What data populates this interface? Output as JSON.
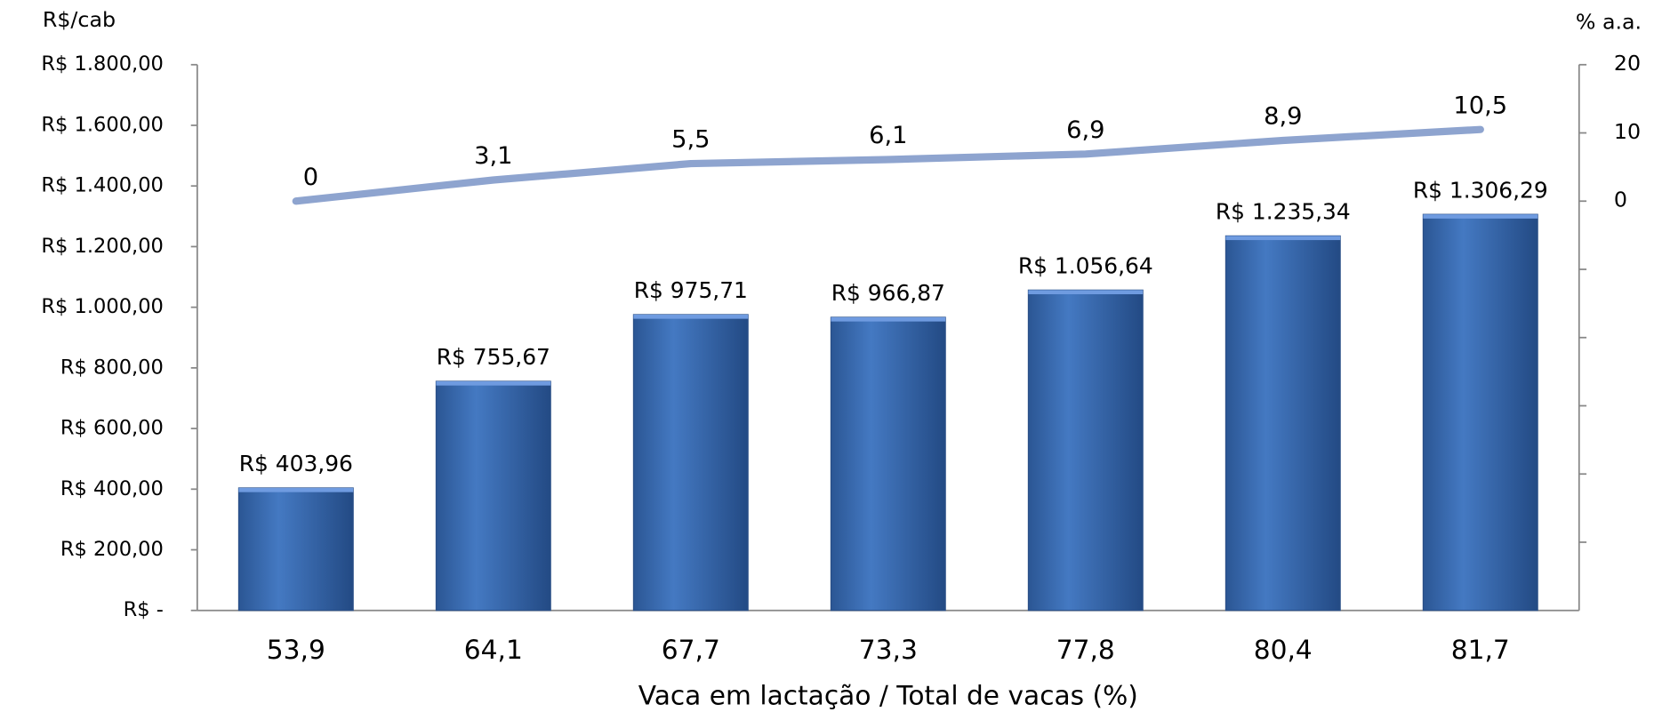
{
  "chart_data": {
    "type": "bar",
    "y_axis_title": "R$/cab",
    "y2_axis_title": "% a.a.",
    "x_axis_title": "Vaca em lactação / Total  de  vacas (%)",
    "categories": [
      "53,9",
      "64,1",
      "67,7",
      "73,3",
      "77,8",
      "80,4",
      "81,7"
    ],
    "series": [
      {
        "type": "bar",
        "color": "#3a6bb0",
        "values": [
          403.96,
          755.67,
          975.71,
          966.87,
          1056.64,
          1235.34,
          1306.29
        ],
        "value_labels": [
          "R$ 403,96",
          "R$ 755,67",
          "R$ 975,71",
          "R$ 966,87",
          "R$ 1.056,64",
          "R$ 1.235,34",
          "R$ 1.306,29"
        ]
      },
      {
        "type": "line",
        "axis": "y2",
        "color": "#8ea4cf",
        "values": [
          0,
          3.1,
          5.5,
          6.1,
          6.9,
          8.9,
          10.5
        ],
        "value_labels": [
          "0",
          "3,1",
          "5,5",
          "6,1",
          "6,9",
          "8,9",
          "10,5"
        ]
      }
    ],
    "ylim": [
      0,
      1800
    ],
    "yticks": [
      {
        "value": 0,
        "label": "R$ -"
      },
      {
        "value": 200,
        "label": "R$ 200,00"
      },
      {
        "value": 400,
        "label": "R$ 400,00"
      },
      {
        "value": 600,
        "label": "R$ 600,00"
      },
      {
        "value": 800,
        "label": "R$ 800,00"
      },
      {
        "value": 1000,
        "label": "R$ 1.000,00"
      },
      {
        "value": 1200,
        "label": "R$ 1.200,00"
      },
      {
        "value": 1400,
        "label": "R$ 1.400,00"
      },
      {
        "value": 1600,
        "label": "R$ 1.600,00"
      },
      {
        "value": 1800,
        "label": "R$ 1.800,00"
      }
    ],
    "y2lim": [
      -60,
      20
    ],
    "y2ticks": [
      {
        "value": -50,
        "label": null
      },
      {
        "value": -40,
        "label": null
      },
      {
        "value": -30,
        "label": null
      },
      {
        "value": -20,
        "label": null
      },
      {
        "value": -10,
        "label": null
      },
      0,
      10,
      20
    ],
    "grid": false
  }
}
